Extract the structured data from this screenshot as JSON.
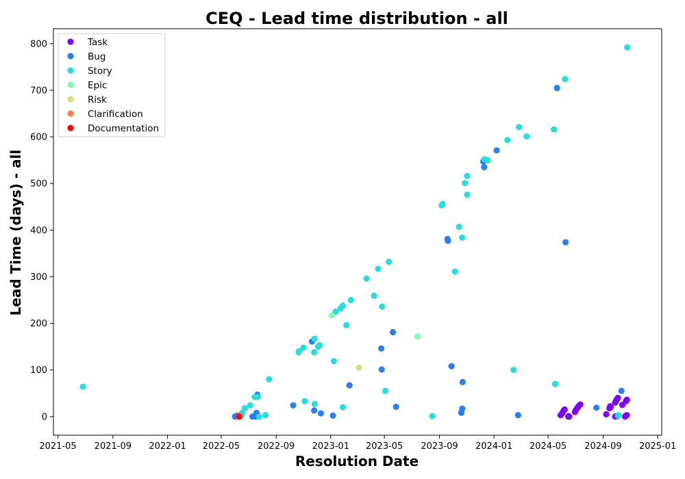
{
  "chart_data": {
    "type": "scatter",
    "title": "CEQ - Lead time distribution - all",
    "xlabel": "Resolution Date",
    "ylabel": "Lead Time (days) - all",
    "xlim": [
      "2021-04-21",
      "2025-01-10"
    ],
    "ylim": [
      -40,
      832
    ],
    "x_ticks": [
      "2021-05",
      "2021-09",
      "2022-01",
      "2022-05",
      "2022-09",
      "2023-01",
      "2023-05",
      "2023-09",
      "2024-01",
      "2024-05",
      "2024-09",
      "2025-01"
    ],
    "y_ticks": [
      0,
      100,
      200,
      300,
      400,
      500,
      600,
      700,
      800
    ],
    "grid": false,
    "legend_position": "top-left",
    "series": [
      {
        "name": "Task",
        "color": "#8000ff",
        "points": [
          [
            "2024-05-29",
            3
          ],
          [
            "2024-06-01",
            6
          ],
          [
            "2024-06-03",
            10
          ],
          [
            "2024-06-05",
            13
          ],
          [
            "2024-06-07",
            15
          ],
          [
            "2024-06-15",
            0
          ],
          [
            "2024-06-16",
            1
          ],
          [
            "2024-06-17",
            0
          ],
          [
            "2024-06-30",
            10
          ],
          [
            "2024-07-02",
            14
          ],
          [
            "2024-07-05",
            18
          ],
          [
            "2024-07-08",
            22
          ],
          [
            "2024-07-12",
            26
          ],
          [
            "2024-09-08",
            5
          ],
          [
            "2024-09-15",
            18
          ],
          [
            "2024-09-17",
            22
          ],
          [
            "2024-09-18",
            20
          ],
          [
            "2024-09-28",
            30
          ],
          [
            "2024-09-30",
            34
          ],
          [
            "2024-10-02",
            37
          ],
          [
            "2024-10-04",
            40
          ],
          [
            "2024-09-28",
            0
          ],
          [
            "2024-09-30",
            1
          ],
          [
            "2024-10-14",
            25
          ],
          [
            "2024-10-22",
            33
          ],
          [
            "2024-10-24",
            36
          ],
          [
            "2024-10-20",
            0
          ],
          [
            "2024-10-22",
            2
          ],
          [
            "2024-10-24",
            3
          ]
        ]
      },
      {
        "name": "Bug",
        "color": "#2c7ef7",
        "points": [
          [
            "2022-06-01",
            0
          ],
          [
            "2022-06-05",
            2
          ],
          [
            "2022-06-10",
            1
          ],
          [
            "2022-07-10",
            0
          ],
          [
            "2022-07-14",
            1
          ],
          [
            "2022-07-17",
            0
          ],
          [
            "2022-07-19",
            8
          ],
          [
            "2022-07-21",
            47
          ],
          [
            "2022-10-09",
            24
          ],
          [
            "2022-11-20",
            161
          ],
          [
            "2022-11-25",
            13
          ],
          [
            "2022-12-10",
            7
          ],
          [
            "2023-01-06",
            2
          ],
          [
            "2023-02-12",
            67
          ],
          [
            "2023-04-24",
            146
          ],
          [
            "2023-04-25",
            101
          ],
          [
            "2023-05-20",
            181
          ],
          [
            "2023-05-27",
            21
          ],
          [
            "2023-09-19",
            381
          ],
          [
            "2023-09-20",
            377
          ],
          [
            "2023-09-28",
            108
          ],
          [
            "2023-10-20",
            8
          ],
          [
            "2023-10-22",
            17
          ],
          [
            "2023-10-23",
            74
          ],
          [
            "2023-12-08",
            547
          ],
          [
            "2023-12-10",
            535
          ],
          [
            "2024-01-07",
            571
          ],
          [
            "2024-02-24",
            3
          ],
          [
            "2024-05-21",
            705
          ],
          [
            "2024-06-09",
            374
          ],
          [
            "2024-08-17",
            19
          ],
          [
            "2024-10-03",
            1
          ],
          [
            "2024-10-12",
            55
          ]
        ]
      },
      {
        "name": "Story",
        "color": "#2adddd",
        "points": [
          [
            "2021-06-26",
            64
          ],
          [
            "2022-06-14",
            0
          ],
          [
            "2022-06-15",
            2
          ],
          [
            "2022-06-16",
            5
          ],
          [
            "2022-06-17",
            8
          ],
          [
            "2022-06-23",
            18
          ],
          [
            "2022-07-05",
            24
          ],
          [
            "2022-07-15",
            42
          ],
          [
            "2022-07-22",
            42
          ],
          [
            "2022-07-25",
            0
          ],
          [
            "2022-08-08",
            3
          ],
          [
            "2022-08-16",
            80
          ],
          [
            "2022-10-21",
            138
          ],
          [
            "2022-10-22",
            140
          ],
          [
            "2022-11-01",
            148
          ],
          [
            "2022-11-04",
            33
          ],
          [
            "2022-11-25",
            138
          ],
          [
            "2022-11-26",
            167
          ],
          [
            "2022-11-26",
            27
          ],
          [
            "2022-12-04",
            150
          ],
          [
            "2022-12-07",
            153
          ],
          [
            "2023-01-08",
            119
          ],
          [
            "2023-01-12",
            225
          ],
          [
            "2023-01-23",
            232
          ],
          [
            "2023-01-28",
            238
          ],
          [
            "2023-01-28",
            20
          ],
          [
            "2023-02-05",
            196
          ],
          [
            "2023-02-15",
            250
          ],
          [
            "2023-03-22",
            296
          ],
          [
            "2023-04-08",
            259
          ],
          [
            "2023-04-17",
            317
          ],
          [
            "2023-04-26",
            236
          ],
          [
            "2023-05-03",
            55
          ],
          [
            "2023-05-11",
            332
          ],
          [
            "2023-08-16",
            1
          ],
          [
            "2023-09-06",
            453
          ],
          [
            "2023-09-08",
            456
          ],
          [
            "2023-10-06",
            311
          ],
          [
            "2023-10-15",
            407
          ],
          [
            "2023-10-22",
            384
          ],
          [
            "2023-10-28",
            501
          ],
          [
            "2023-11-02",
            516
          ],
          [
            "2023-11-02",
            476
          ],
          [
            "2023-12-11",
            552
          ],
          [
            "2023-12-18",
            550
          ],
          [
            "2024-01-31",
            593
          ],
          [
            "2024-02-14",
            100
          ],
          [
            "2024-02-26",
            621
          ],
          [
            "2024-03-14",
            601
          ],
          [
            "2024-05-14",
            616
          ],
          [
            "2024-05-17",
            70
          ],
          [
            "2024-06-08",
            724
          ],
          [
            "2024-10-05",
            3
          ],
          [
            "2024-10-25",
            792
          ]
        ]
      },
      {
        "name": "Epic",
        "color": "#80ffb4",
        "points": [
          [
            "2023-01-03",
            217
          ],
          [
            "2023-07-14",
            172
          ]
        ]
      },
      {
        "name": "Risk",
        "color": "#d4dd80",
        "points": [
          [
            "2023-03-05",
            105
          ]
        ]
      },
      {
        "name": "Clarification",
        "color": "#ff7f4f",
        "points": [
          [
            "2022-06-10",
            2
          ]
        ]
      },
      {
        "name": "Documentation",
        "color": "#ff0000",
        "points": [
          [
            "2022-06-10",
            0
          ]
        ]
      }
    ]
  }
}
